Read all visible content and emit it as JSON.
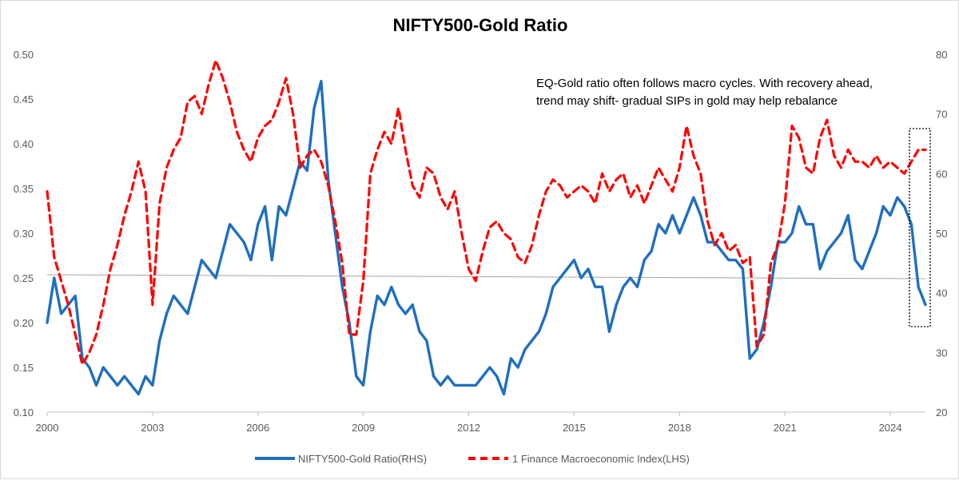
{
  "chart_data": {
    "type": "line",
    "title": "NIFTY500-Gold Ratio",
    "annotation": {
      "lines": [
        "EQ-Gold ratio often follows macro cycles. With recovery ahead,",
        "trend may shift- gradual SIPs in gold may help rebalance"
      ]
    },
    "x_range": [
      2000,
      2025
    ],
    "x_ticks": [
      "2000",
      "2003",
      "2006",
      "2009",
      "2012",
      "2015",
      "2018",
      "2021",
      "2024"
    ],
    "y_left": {
      "range": [
        0.1,
        0.5
      ],
      "ticks": [
        "0.10",
        "0.15",
        "0.20",
        "0.25",
        "0.30",
        "0.35",
        "0.40",
        "0.45",
        "0.50"
      ]
    },
    "y_right": {
      "range": [
        20,
        80
      ],
      "ticks": [
        "20",
        "30",
        "40",
        "50",
        "60",
        "70",
        "80"
      ]
    },
    "grid": false,
    "legend_position": "bottom",
    "series": [
      {
        "name": "NIFTY500-Gold Ratio(RHS)",
        "axis": "left",
        "color": "#1f6fbf",
        "style": "solid",
        "x": [
          2000.0,
          2000.2,
          2000.4,
          2000.6,
          2000.8,
          2001.0,
          2001.2,
          2001.4,
          2001.6,
          2001.8,
          2002.0,
          2002.2,
          2002.4,
          2002.6,
          2002.8,
          2003.0,
          2003.2,
          2003.4,
          2003.6,
          2003.8,
          2004.0,
          2004.2,
          2004.4,
          2004.6,
          2004.8,
          2005.0,
          2005.2,
          2005.4,
          2005.6,
          2005.8,
          2006.0,
          2006.2,
          2006.4,
          2006.6,
          2006.8,
          2007.0,
          2007.2,
          2007.4,
          2007.6,
          2007.8,
          2008.0,
          2008.2,
          2008.4,
          2008.6,
          2008.8,
          2009.0,
          2009.2,
          2009.4,
          2009.6,
          2009.8,
          2010.0,
          2010.2,
          2010.4,
          2010.6,
          2010.8,
          2011.0,
          2011.2,
          2011.4,
          2011.6,
          2011.8,
          2012.0,
          2012.2,
          2012.4,
          2012.6,
          2012.8,
          2013.0,
          2013.2,
          2013.4,
          2013.6,
          2013.8,
          2014.0,
          2014.2,
          2014.4,
          2014.6,
          2014.8,
          2015.0,
          2015.2,
          2015.4,
          2015.6,
          2015.8,
          2016.0,
          2016.2,
          2016.4,
          2016.6,
          2016.8,
          2017.0,
          2017.2,
          2017.4,
          2017.6,
          2017.8,
          2018.0,
          2018.2,
          2018.4,
          2018.6,
          2018.8,
          2019.0,
          2019.2,
          2019.4,
          2019.6,
          2019.8,
          2020.0,
          2020.2,
          2020.4,
          2020.6,
          2020.8,
          2021.0,
          2021.2,
          2021.4,
          2021.6,
          2021.8,
          2022.0,
          2022.2,
          2022.4,
          2022.6,
          2022.8,
          2023.0,
          2023.2,
          2023.4,
          2023.6,
          2023.8,
          2024.0,
          2024.2,
          2024.4,
          2024.6,
          2024.8,
          2025.0
        ],
        "values": [
          0.2,
          0.25,
          0.21,
          0.22,
          0.23,
          0.16,
          0.15,
          0.13,
          0.15,
          0.14,
          0.13,
          0.14,
          0.13,
          0.12,
          0.14,
          0.13,
          0.18,
          0.21,
          0.23,
          0.22,
          0.21,
          0.24,
          0.27,
          0.26,
          0.25,
          0.28,
          0.31,
          0.3,
          0.29,
          0.27,
          0.31,
          0.33,
          0.27,
          0.33,
          0.32,
          0.35,
          0.38,
          0.37,
          0.44,
          0.47,
          0.36,
          0.3,
          0.24,
          0.2,
          0.14,
          0.13,
          0.19,
          0.23,
          0.22,
          0.24,
          0.22,
          0.21,
          0.22,
          0.19,
          0.18,
          0.14,
          0.13,
          0.14,
          0.13,
          0.13,
          0.13,
          0.13,
          0.14,
          0.15,
          0.14,
          0.12,
          0.16,
          0.15,
          0.17,
          0.18,
          0.19,
          0.21,
          0.24,
          0.25,
          0.26,
          0.27,
          0.25,
          0.26,
          0.24,
          0.24,
          0.19,
          0.22,
          0.24,
          0.25,
          0.24,
          0.27,
          0.28,
          0.31,
          0.3,
          0.32,
          0.3,
          0.32,
          0.34,
          0.32,
          0.29,
          0.29,
          0.28,
          0.27,
          0.27,
          0.26,
          0.16,
          0.17,
          0.2,
          0.24,
          0.29,
          0.29,
          0.3,
          0.33,
          0.31,
          0.31,
          0.26,
          0.28,
          0.29,
          0.3,
          0.32,
          0.27,
          0.26,
          0.28,
          0.3,
          0.33,
          0.32,
          0.34,
          0.33,
          0.31,
          0.24,
          0.22
        ]
      },
      {
        "name": "1 Finance Macroeconomic Index(LHS)",
        "axis": "right",
        "color": "#ff0000",
        "style": "dashed",
        "x": [
          2000.0,
          2000.2,
          2000.4,
          2000.6,
          2000.8,
          2001.0,
          2001.2,
          2001.4,
          2001.6,
          2001.8,
          2002.0,
          2002.2,
          2002.4,
          2002.6,
          2002.8,
          2003.0,
          2003.2,
          2003.4,
          2003.6,
          2003.8,
          2004.0,
          2004.2,
          2004.4,
          2004.6,
          2004.8,
          2005.0,
          2005.2,
          2005.4,
          2005.6,
          2005.8,
          2006.0,
          2006.2,
          2006.4,
          2006.6,
          2006.8,
          2007.0,
          2007.2,
          2007.4,
          2007.6,
          2007.8,
          2008.0,
          2008.2,
          2008.4,
          2008.6,
          2008.8,
          2009.0,
          2009.2,
          2009.4,
          2009.6,
          2009.8,
          2010.0,
          2010.2,
          2010.4,
          2010.6,
          2010.8,
          2011.0,
          2011.2,
          2011.4,
          2011.6,
          2011.8,
          2012.0,
          2012.2,
          2012.4,
          2012.6,
          2012.8,
          2013.0,
          2013.2,
          2013.4,
          2013.6,
          2013.8,
          2014.0,
          2014.2,
          2014.4,
          2014.6,
          2014.8,
          2015.0,
          2015.2,
          2015.4,
          2015.6,
          2015.8,
          2016.0,
          2016.2,
          2016.4,
          2016.6,
          2016.8,
          2017.0,
          2017.2,
          2017.4,
          2017.6,
          2017.8,
          2018.0,
          2018.2,
          2018.4,
          2018.6,
          2018.8,
          2019.0,
          2019.2,
          2019.4,
          2019.6,
          2019.8,
          2020.0,
          2020.2,
          2020.4,
          2020.6,
          2020.8,
          2021.0,
          2021.2,
          2021.4,
          2021.6,
          2021.8,
          2022.0,
          2022.2,
          2022.4,
          2022.6,
          2022.8,
          2023.0,
          2023.2,
          2023.4,
          2023.6,
          2023.8,
          2024.0,
          2024.2,
          2024.4,
          2024.6,
          2024.8,
          2025.0
        ],
        "values": [
          57,
          46,
          42,
          38,
          33,
          28,
          30,
          33,
          38,
          44,
          48,
          53,
          57,
          62,
          57,
          38,
          55,
          61,
          64,
          66,
          72,
          73,
          70,
          75,
          79,
          76,
          72,
          67,
          64,
          62,
          66,
          68,
          69,
          72,
          76,
          70,
          61,
          63,
          64,
          62,
          58,
          52,
          45,
          33,
          33,
          42,
          60,
          64,
          67,
          65,
          71,
          64,
          58,
          56,
          61,
          60,
          56,
          54,
          57,
          50,
          44,
          42,
          47,
          51,
          52,
          50,
          49,
          46,
          45,
          48,
          53,
          57,
          59,
          58,
          56,
          57,
          58,
          57,
          55,
          60,
          57,
          59,
          60,
          56,
          58,
          55,
          58,
          61,
          59,
          57,
          61,
          68,
          63,
          60,
          52,
          48,
          50,
          47,
          48,
          45,
          46,
          31,
          33,
          45,
          48,
          55,
          68,
          66,
          61,
          60,
          66,
          69,
          63,
          61,
          64,
          62,
          62,
          61,
          63,
          61,
          62,
          61,
          60,
          62,
          64,
          64
        ]
      }
    ]
  }
}
